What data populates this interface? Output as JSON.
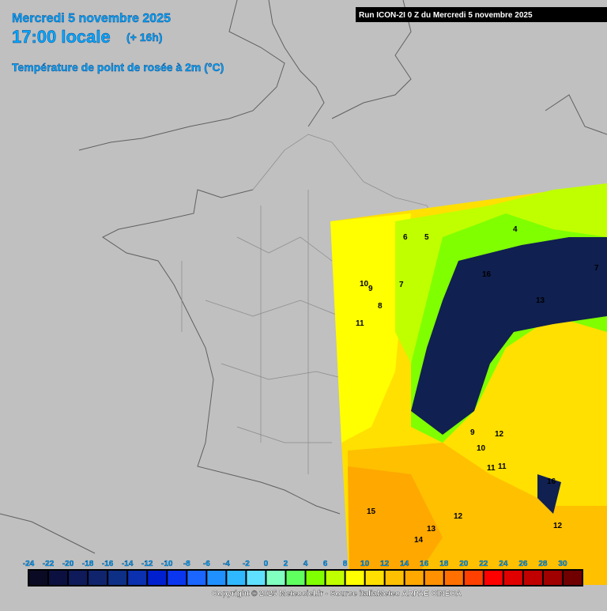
{
  "header": {
    "date": "Mercredi 5 novembre 2025",
    "time": "17:00 locale",
    "lead": "(+ 16h)",
    "parameter": "Température de point de rosée à 2m (°C)"
  },
  "run": "Run ICON-2I 0 Z du Mercredi 5 novembre 2025",
  "legend": {
    "ticks": [
      -24,
      -22,
      -20,
      -18,
      -16,
      -14,
      -12,
      -10,
      -8,
      -6,
      -4,
      -2,
      0,
      2,
      4,
      6,
      8,
      10,
      12,
      14,
      16,
      18,
      20,
      22,
      24,
      26,
      28,
      30
    ],
    "colors": [
      "#0a0a24",
      "#0c1040",
      "#0f1a5a",
      "#10246e",
      "#0d2f86",
      "#0b30b0",
      "#0020d0",
      "#0a36f0",
      "#1a66ff",
      "#2090ff",
      "#30b8ff",
      "#60e0ff",
      "#80ffc0",
      "#60ff60",
      "#80ff00",
      "#c0ff00",
      "#ffff00",
      "#ffe000",
      "#ffc000",
      "#ffa800",
      "#ff9000",
      "#ff7000",
      "#ff4000",
      "#ff0000",
      "#e00000",
      "#c00000",
      "#a00000",
      "#700000"
    ]
  },
  "copyright": "Copyright © 2025 Meteociel.fr - Source italiaMeteo ARPAE CINECA",
  "map": {
    "labels": [
      "10",
      "9",
      "11",
      "8",
      "7",
      "5",
      "4",
      "6",
      "16",
      "13",
      "12",
      "11",
      "10",
      "9",
      "15",
      "14",
      "13",
      "12",
      "11",
      "16",
      "12",
      "7"
    ]
  }
}
